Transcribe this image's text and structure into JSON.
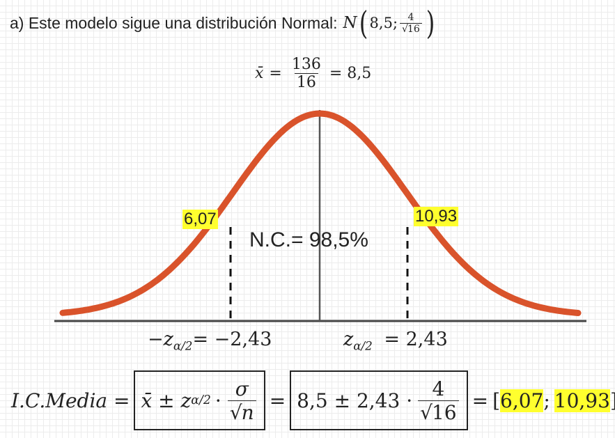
{
  "title": {
    "prefix": "a) Este modelo sigue una distribución Normal:",
    "symbol": "N",
    "mean": "8,5;",
    "frac_num": "4",
    "frac_den": "16"
  },
  "mean_eq": {
    "lhs": "x̄",
    "num": "136",
    "den": "16",
    "rhs": "= 8,5"
  },
  "labels": {
    "left_value": "6,07",
    "right_value": "10,93",
    "confidence": "N.C.= 98,5%",
    "z_left_prefix": "−z",
    "z_left_sub": "α/2",
    "z_left_value": "= −2,43",
    "z_right_prefix": "z",
    "z_right_sub": "α/2",
    "z_right_value": "= 2,43"
  },
  "formula": {
    "lhs": "I.C.Media =",
    "xbar_pm": "x̄ ± z",
    "z_sub": "α/2",
    "dot": "·",
    "sigma": "σ",
    "sqrt_n": "n",
    "eq1": "=",
    "num_part": "8,5 ± 2,43 ·",
    "four": "4",
    "sixteen": "16",
    "eq2": "=",
    "open": "[",
    "low": "6,07",
    "sep": ";",
    "high": "10,93",
    "close": "]"
  },
  "colors": {
    "curve": "#d9532b",
    "highlight": "#ffff2e",
    "axis": "#444444"
  }
}
